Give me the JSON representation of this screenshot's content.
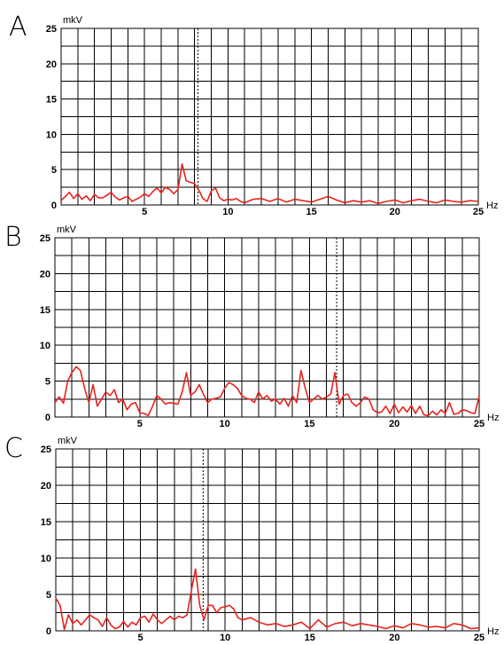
{
  "chart_data": [
    {
      "panel": "A",
      "type": "line",
      "ylabel": "mkV",
      "xlabel": "Hz",
      "xlim": [
        0,
        25
      ],
      "ylim": [
        0,
        25
      ],
      "xticks": [
        5,
        10,
        15,
        20,
        25
      ],
      "yticks": [
        0,
        5,
        10,
        15,
        20,
        25
      ],
      "grid": true,
      "line_color": "#e8231e",
      "marker_x": 8.2,
      "series": [
        {
          "x": [
            0.0,
            0.25,
            0.5,
            0.75,
            1.0,
            1.25,
            1.5,
            1.75,
            2.0,
            2.25,
            2.5,
            2.75,
            3.0,
            3.25,
            3.5,
            3.75,
            4.0,
            4.25,
            4.5,
            4.75,
            5.0,
            5.25,
            5.5,
            5.75,
            6.0,
            6.25,
            6.5,
            6.75,
            7.0,
            7.25,
            7.5,
            7.75,
            8.0,
            8.25,
            8.5,
            8.75,
            9.0,
            9.25,
            9.5,
            9.75,
            10.0,
            10.25,
            10.5,
            10.75,
            11.0,
            11.5,
            12.0,
            12.5,
            13.0,
            13.5,
            14.0,
            14.5,
            15.0,
            15.5,
            16.0,
            16.5,
            17.0,
            17.5,
            18.0,
            18.5,
            19.0,
            19.5,
            20.0,
            20.5,
            21.0,
            21.5,
            22.0,
            22.5,
            23.0,
            23.5,
            24.0,
            24.5,
            25.0
          ],
          "y": [
            0.6,
            1.2,
            1.8,
            0.9,
            1.6,
            0.8,
            1.3,
            0.6,
            1.5,
            1.0,
            1.0,
            1.4,
            1.8,
            1.1,
            0.7,
            1.0,
            1.2,
            0.5,
            0.8,
            1.1,
            1.6,
            1.2,
            1.9,
            2.4,
            1.7,
            2.5,
            2.2,
            1.6,
            2.2,
            5.8,
            3.4,
            3.2,
            3.0,
            2.1,
            0.9,
            0.5,
            2.0,
            2.4,
            1.0,
            0.6,
            0.8,
            0.7,
            0.9,
            0.5,
            0.3,
            0.8,
            0.9,
            0.5,
            0.9,
            0.4,
            0.8,
            0.6,
            0.4,
            0.8,
            1.2,
            0.7,
            0.3,
            0.6,
            0.4,
            0.6,
            0.2,
            0.5,
            0.7,
            0.3,
            0.6,
            0.8,
            0.5,
            0.3,
            0.7,
            0.5,
            0.4,
            0.6,
            0.5
          ]
        }
      ]
    },
    {
      "panel": "B",
      "type": "line",
      "ylabel": "mkV",
      "xlabel": "Hz",
      "xlim": [
        0,
        25
      ],
      "ylim": [
        0,
        25
      ],
      "xticks": [
        5,
        10,
        15,
        20,
        25
      ],
      "yticks": [
        0,
        5,
        10,
        15,
        20,
        25
      ],
      "grid": true,
      "line_color": "#e8231e",
      "marker_x": 16.6,
      "series": [
        {
          "x": [
            0.0,
            0.25,
            0.5,
            0.75,
            1.0,
            1.25,
            1.5,
            1.75,
            2.0,
            2.25,
            2.5,
            2.75,
            3.0,
            3.25,
            3.5,
            3.75,
            4.0,
            4.25,
            4.5,
            4.75,
            5.0,
            5.25,
            5.5,
            5.75,
            6.0,
            6.25,
            6.5,
            6.75,
            7.0,
            7.25,
            7.5,
            7.75,
            8.0,
            8.25,
            8.5,
            8.75,
            9.0,
            9.25,
            9.5,
            9.75,
            10.0,
            10.25,
            10.5,
            10.75,
            11.0,
            11.25,
            11.5,
            11.75,
            12.0,
            12.25,
            12.5,
            12.75,
            13.0,
            13.25,
            13.5,
            13.75,
            14.0,
            14.25,
            14.5,
            14.75,
            15.0,
            15.25,
            15.5,
            15.75,
            16.0,
            16.25,
            16.5,
            16.75,
            17.0,
            17.25,
            17.5,
            17.75,
            18.0,
            18.25,
            18.5,
            18.75,
            19.0,
            19.25,
            19.5,
            19.75,
            20.0,
            20.25,
            20.5,
            20.75,
            21.0,
            21.25,
            21.5,
            21.75,
            22.0,
            22.25,
            22.5,
            22.75,
            23.0,
            23.25,
            23.5,
            23.75,
            24.0,
            24.25,
            24.5,
            24.75,
            25.0
          ],
          "y": [
            2.0,
            2.8,
            1.9,
            5.0,
            6.2,
            7.0,
            6.5,
            4.0,
            2.0,
            4.5,
            1.5,
            2.5,
            3.5,
            3.0,
            3.8,
            2.0,
            2.5,
            1.0,
            1.8,
            2.0,
            0.6,
            0.5,
            0.2,
            1.5,
            3.0,
            2.5,
            1.8,
            2.0,
            1.9,
            1.8,
            3.5,
            6.2,
            3.0,
            3.5,
            4.5,
            3.2,
            2.0,
            2.5,
            2.6,
            2.8,
            4.0,
            4.8,
            4.5,
            4.0,
            3.0,
            2.6,
            2.5,
            2.0,
            3.5,
            2.5,
            3.0,
            2.2,
            2.5,
            1.8,
            2.6,
            1.5,
            3.0,
            2.0,
            6.5,
            4.0,
            2.0,
            2.5,
            3.0,
            2.5,
            2.8,
            3.2,
            6.2,
            1.8,
            3.0,
            3.2,
            2.0,
            1.5,
            2.0,
            2.8,
            2.5,
            1.0,
            0.6,
            0.7,
            1.5,
            0.5,
            1.8,
            0.6,
            1.4,
            0.7,
            1.6,
            0.5,
            1.5,
            0.3,
            0.2,
            0.8,
            0.3,
            1.0,
            0.5,
            2.0,
            0.4,
            0.5,
            1.0,
            0.9,
            0.6,
            0.5,
            2.9
          ]
        }
      ]
    },
    {
      "panel": "C",
      "type": "line",
      "ylabel": "mkV",
      "xlabel": "Hz",
      "xlim": [
        0,
        25
      ],
      "ylim": [
        0,
        25
      ],
      "xticks": [
        5,
        10,
        15,
        20,
        25
      ],
      "yticks": [
        0,
        5,
        10,
        15,
        20,
        25
      ],
      "grid": true,
      "line_color": "#e8231e",
      "marker_x": 8.7,
      "series": [
        {
          "x": [
            0.0,
            0.25,
            0.5,
            0.75,
            1.0,
            1.25,
            1.5,
            1.75,
            2.0,
            2.25,
            2.5,
            2.75,
            3.0,
            3.25,
            3.5,
            3.75,
            4.0,
            4.25,
            4.5,
            4.75,
            5.0,
            5.25,
            5.5,
            5.75,
            6.0,
            6.25,
            6.5,
            6.75,
            7.0,
            7.25,
            7.5,
            7.75,
            8.0,
            8.25,
            8.5,
            8.75,
            9.0,
            9.25,
            9.5,
            9.75,
            10.0,
            10.25,
            10.5,
            10.75,
            11.0,
            11.5,
            12.0,
            12.5,
            13.0,
            13.5,
            14.0,
            14.5,
            15.0,
            15.5,
            16.0,
            16.5,
            17.0,
            17.5,
            18.0,
            18.5,
            19.0,
            19.5,
            20.0,
            20.5,
            21.0,
            21.5,
            22.0,
            22.5,
            23.0,
            23.5,
            24.0,
            24.5,
            25.0
          ],
          "y": [
            4.5,
            3.5,
            0.2,
            2.2,
            1.0,
            1.5,
            0.8,
            1.5,
            2.2,
            1.8,
            1.5,
            0.6,
            1.8,
            0.8,
            0.3,
            0.5,
            1.3,
            0.5,
            1.2,
            0.8,
            1.8,
            2.0,
            1.2,
            2.3,
            1.5,
            1.0,
            1.5,
            2.0,
            1.5,
            2.0,
            1.8,
            2.2,
            5.5,
            8.5,
            3.5,
            1.5,
            3.5,
            3.5,
            2.5,
            3.2,
            3.3,
            3.5,
            3.0,
            1.8,
            1.5,
            1.8,
            1.2,
            0.8,
            1.0,
            0.6,
            0.8,
            1.2,
            0.3,
            1.5,
            0.5,
            1.0,
            1.2,
            0.7,
            1.0,
            0.8,
            0.6,
            0.3,
            0.7,
            0.4,
            1.0,
            0.8,
            0.5,
            0.6,
            0.4,
            1.0,
            0.8,
            0.3,
            0.4
          ]
        }
      ]
    }
  ]
}
